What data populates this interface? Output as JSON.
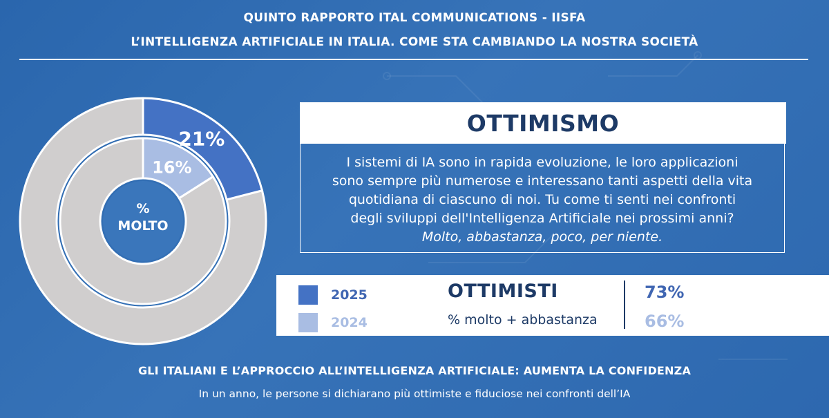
{
  "header": {
    "line1": "QUINTO RAPPORTO ITAL COMMUNICATIONS - IISFA",
    "line2": "L’INTELLIGENZA ARTIFICIALE IN ITALIA. COME STA CAMBIANDO LA NOSTRA SOCIETÀ"
  },
  "section_title": "OTTIMISMO",
  "question": {
    "lines": [
      "I sistemi di IA sono in rapida evoluzione, le loro applicazioni",
      "sono sempre più numerose e interessano tanti aspetti della vita",
      "quotidiana di ciascuno di noi. Tu come ti senti nei confronti",
      "degli sviluppi dell'Intelligenza Artificiale nei prossimi anni?"
    ],
    "options": "Molto, abbastanza, poco, per niente."
  },
  "summary": {
    "label": "OTTIMISTI",
    "sublabel": "% molto + abbastanza",
    "legend": [
      {
        "year": "2025",
        "value": "73%",
        "color": "#4472c4"
      },
      {
        "year": "2024",
        "value": "66%",
        "color": "#a9bde3"
      }
    ]
  },
  "chart_data": {
    "type": "pie",
    "style": "nested-donut",
    "center_label_line1": "%",
    "center_label_line2": "MOLTO",
    "series": [
      {
        "name": "2025",
        "ring": "outer",
        "value": 21,
        "label": "21%",
        "color": "#4472c4",
        "remainder_color": "#d0cece"
      },
      {
        "name": "2024",
        "ring": "inner",
        "value": 16,
        "label": "16%",
        "color": "#a9bde3",
        "remainder_color": "#d0cece"
      }
    ]
  },
  "footer": {
    "title": "GLI ITALIANI E L’APPROCCIO ALL’INTELLIGENZA ARTIFICIALE: AUMENTA LA CONFIDENZA",
    "subtitle": "In un anno, le persone si dichiarano più ottimiste e fiduciose nei confronti dell’IA"
  }
}
